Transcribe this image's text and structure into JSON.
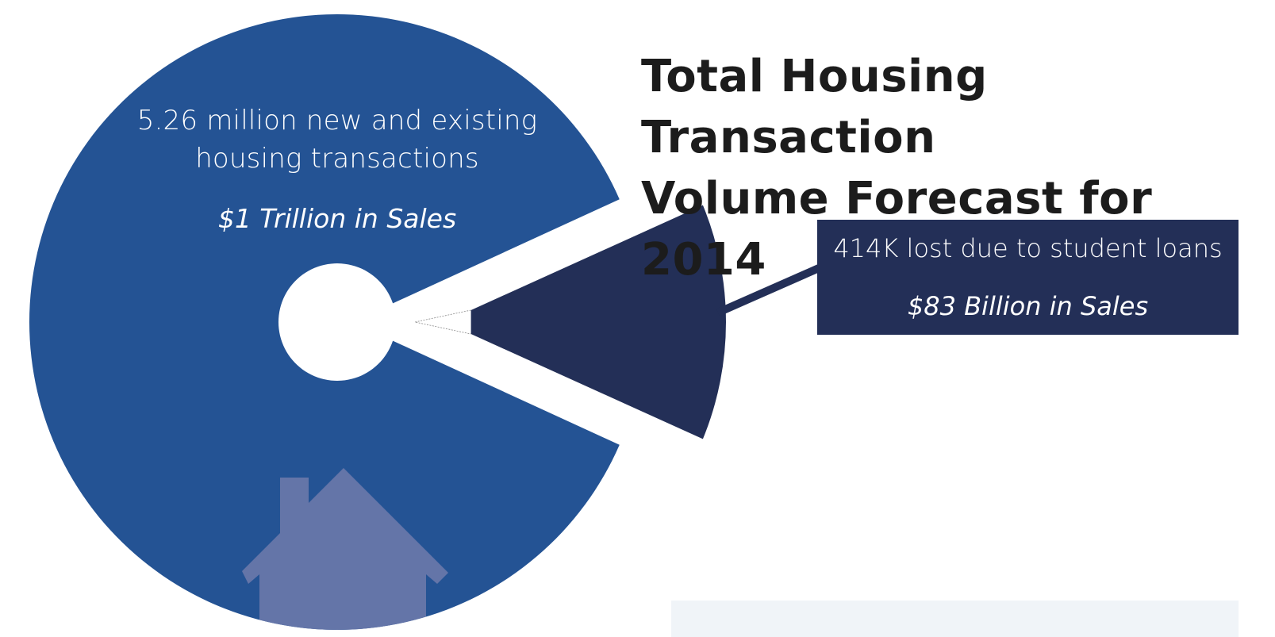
{
  "chart_data": {
    "type": "pie",
    "title": "Total Housing Transaction Volume Forecast for 2014",
    "title_lines": [
      "Total Housing Transaction",
      "Volume Forecast for 2014"
    ],
    "slices": [
      {
        "label": "5.26 million new and existing housing transactions",
        "sales": "$1 Trillion in Sales",
        "value": 5.26,
        "unit": "million transactions",
        "color": "#245394"
      },
      {
        "label": "414K lost due to student loans",
        "sales": "$83 Billion in Sales",
        "value": 0.414,
        "unit": "million transactions",
        "color": "#232f57"
      }
    ],
    "icon": "house-icon",
    "icon_color": "#6475a8",
    "background_color": "#ffffff"
  }
}
